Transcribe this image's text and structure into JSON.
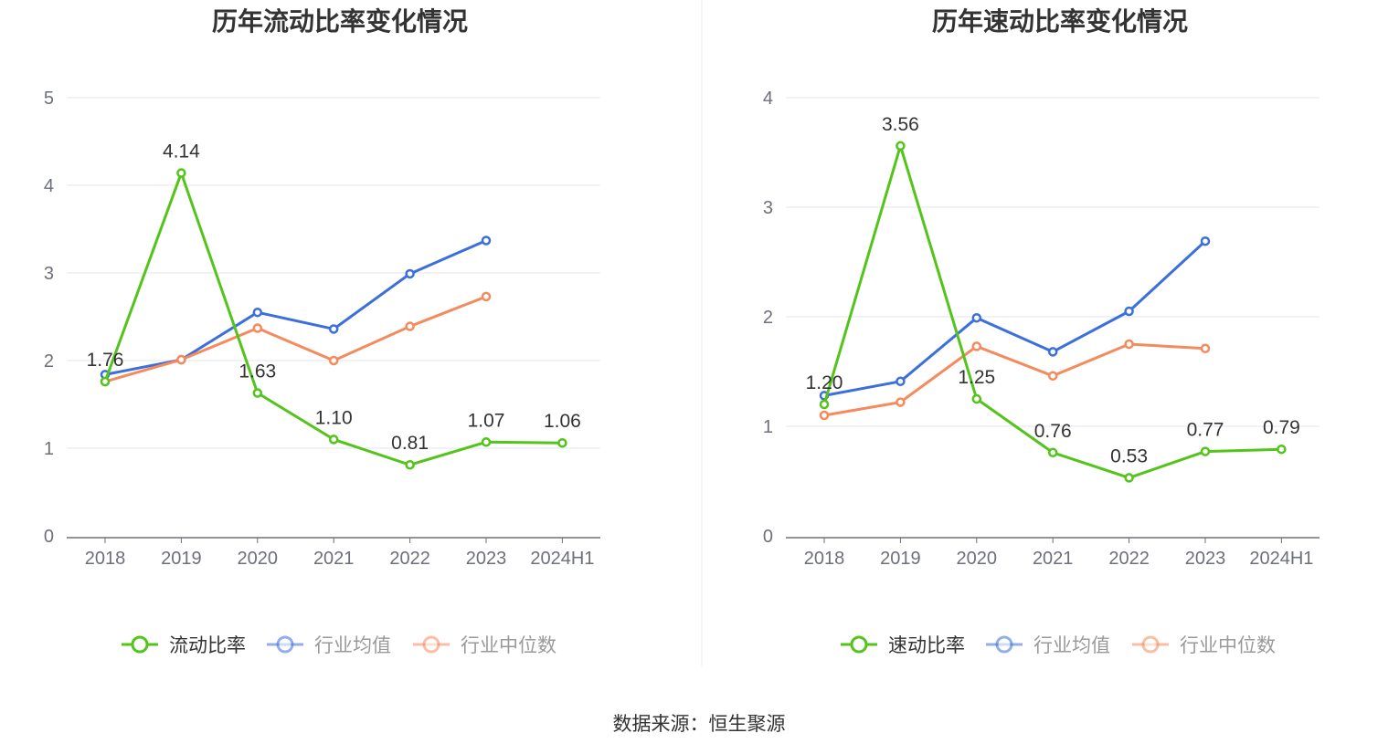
{
  "source": "数据来源：恒生聚源",
  "chart_data": [
    {
      "type": "line",
      "title": "历年流动比率变化情况",
      "categories": [
        "2018",
        "2019",
        "2020",
        "2021",
        "2022",
        "2023",
        "2024H1"
      ],
      "ylim": [
        0,
        5
      ],
      "yticks": [
        "0",
        "1",
        "2",
        "3",
        "4",
        "5"
      ],
      "grid": true,
      "legend_position": "bottom-center",
      "series": [
        {
          "name": "流动比率",
          "color": "#52c41a",
          "active": true,
          "values": [
            1.76,
            4.14,
            1.63,
            1.1,
            0.81,
            1.07,
            1.06
          ],
          "labels": [
            "1.76",
            "4.14",
            "1.63",
            "1.10",
            "0.81",
            "1.07",
            "1.06"
          ]
        },
        {
          "name": "行业均值",
          "color": "#3b6fdc",
          "active": false,
          "values": [
            1.84,
            2.01,
            2.55,
            2.36,
            2.99,
            3.37,
            null
          ]
        },
        {
          "name": "行业中位数",
          "color": "#f58a5c",
          "active": false,
          "values": [
            1.76,
            2.01,
            2.37,
            2.0,
            2.39,
            2.73,
            null
          ]
        }
      ]
    },
    {
      "type": "line",
      "title": "历年速动比率变化情况",
      "categories": [
        "2018",
        "2019",
        "2020",
        "2021",
        "2022",
        "2023",
        "2024H1"
      ],
      "ylim": [
        0,
        4
      ],
      "yticks": [
        "0",
        "1",
        "2",
        "3",
        "4"
      ],
      "grid": true,
      "legend_position": "bottom-center",
      "series": [
        {
          "name": "速动比率",
          "color": "#52c41a",
          "active": true,
          "values": [
            1.2,
            3.56,
            1.25,
            0.76,
            0.53,
            0.77,
            0.79
          ],
          "labels": [
            "1.20",
            "3.56",
            "1.25",
            "0.76",
            "0.53",
            "0.77",
            "0.79"
          ]
        },
        {
          "name": "行业均值",
          "color": "#3b6fdc",
          "active": false,
          "values": [
            1.28,
            1.41,
            1.99,
            1.68,
            2.05,
            2.69,
            null
          ]
        },
        {
          "name": "行业中位数",
          "color": "#f58a5c",
          "active": false,
          "values": [
            1.1,
            1.22,
            1.73,
            1.46,
            1.75,
            1.71,
            null
          ]
        }
      ]
    }
  ]
}
